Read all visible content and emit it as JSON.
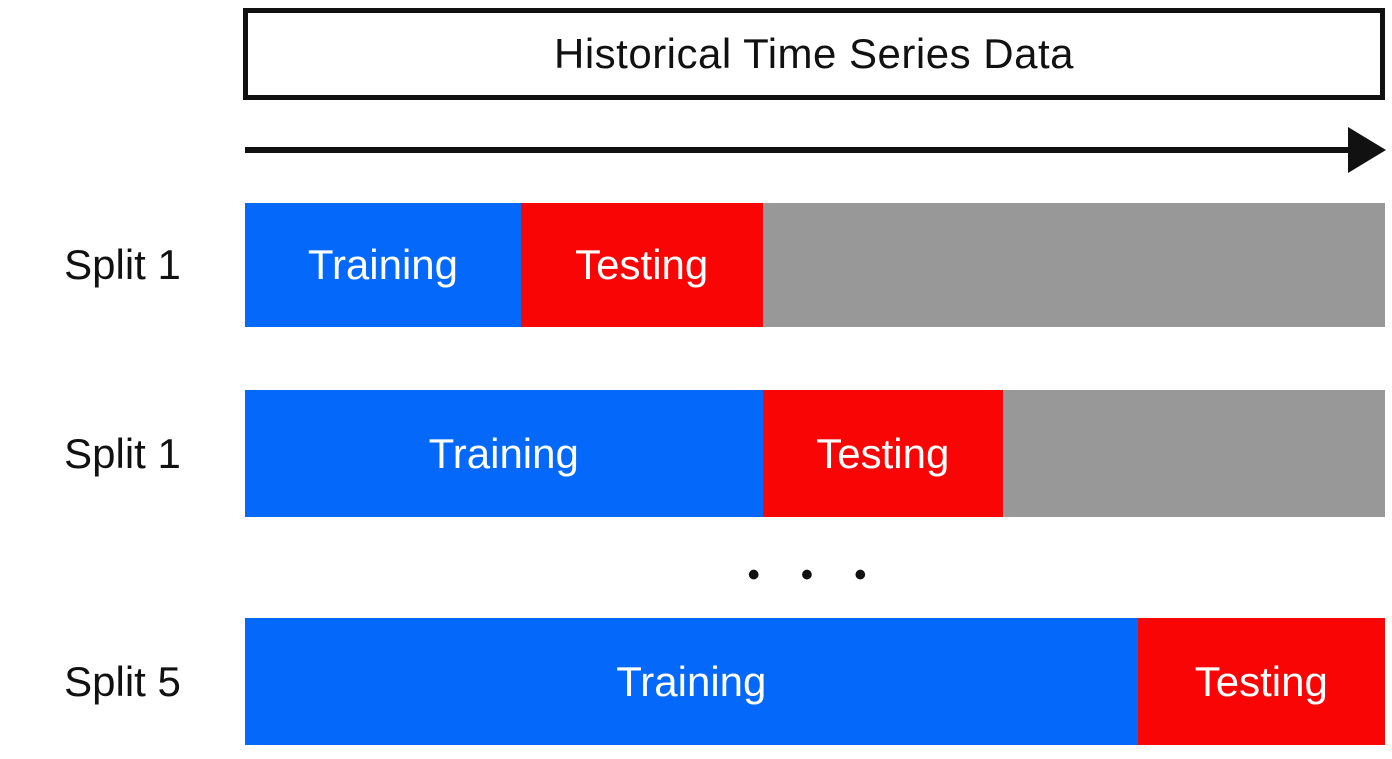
{
  "title_box": {
    "label": "Historical Time Series Data"
  },
  "arrow": {
    "direction": "right"
  },
  "ellipsis": "• • •",
  "colors": {
    "training": "#0468fb",
    "testing": "#f90505",
    "unused": "#989898",
    "label_text": "#111111",
    "bar_text": "#ffffff",
    "outline": "#111111",
    "background": "#ffffff"
  },
  "splits": [
    {
      "label": "Split 1",
      "segments": [
        {
          "name": "Training",
          "type": "training",
          "width_pct": 24.2
        },
        {
          "name": "Testing",
          "type": "testing",
          "width_pct": 21.2
        },
        {
          "name": "",
          "type": "unused",
          "width_pct": 54.6
        }
      ]
    },
    {
      "label": "Split 1",
      "segments": [
        {
          "name": "Training",
          "type": "training",
          "width_pct": 45.4
        },
        {
          "name": "Testing",
          "type": "testing",
          "width_pct": 21.1
        },
        {
          "name": "",
          "type": "unused",
          "width_pct": 33.5
        }
      ]
    },
    {
      "label": "Split 5",
      "segments": [
        {
          "name": "Training",
          "type": "training",
          "width_pct": 78.3
        },
        {
          "name": "Testing",
          "type": "testing",
          "width_pct": 21.7
        }
      ]
    }
  ]
}
